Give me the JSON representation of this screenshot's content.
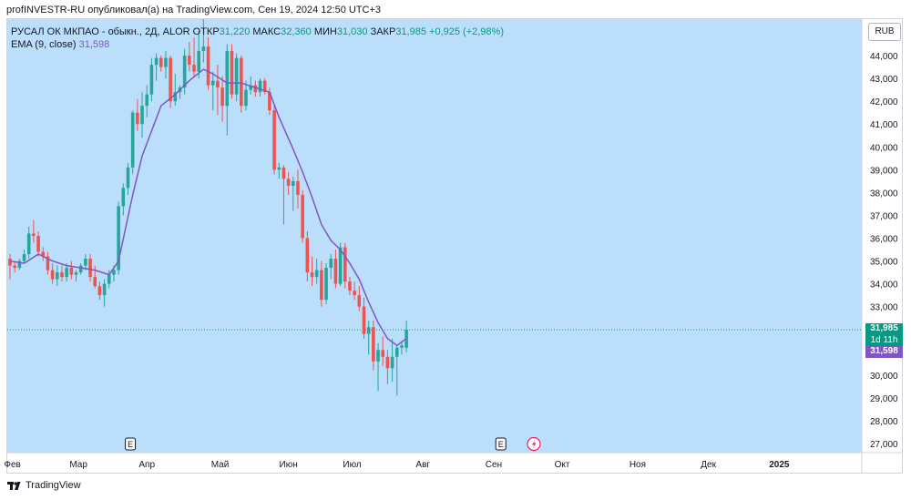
{
  "header": {
    "text": "profINVESTR-RU опубликовал(а) на TradingView.com, Сен 19, 2024 12:50 UTC+3"
  },
  "legend": {
    "symbol": "РУСАЛ ОК МКПАО - обыкн., 2Д, ALOR",
    "open_label": "ОТКР",
    "open_value": "31,220",
    "high_label": "МАКС",
    "high_value": "32,360",
    "low_label": "МИН",
    "low_value": "31,030",
    "close_label": "ЗАКР",
    "close_value": "31,985",
    "change": "+0,925 (+2,98%)",
    "ema_label": "EMA (9, close)",
    "ema_value": "31,598"
  },
  "currency": "RUB",
  "price_tag": {
    "value": "31,985",
    "countdown": "1d 11h",
    "ema": "31,598"
  },
  "event_markers": [
    "E",
    "E"
  ],
  "footer": {
    "brand": "TradingView"
  },
  "colors": {
    "background": "#bbdefb",
    "up": "#26a69a",
    "down": "#ef5350",
    "ema": "#7e57c2",
    "ema_tag": "#7e57c2",
    "last_price": "#089981"
  },
  "chart_data": {
    "type": "candlestick",
    "title": "РУСАЛ ОК МКПАО - обыкн., 2Д, ALOR",
    "ylim": [
      26.6,
      45.6
    ],
    "y_ticks": [
      27,
      28,
      29,
      30,
      31,
      32,
      33,
      34,
      35,
      36,
      37,
      38,
      39,
      40,
      41,
      42,
      43,
      44
    ],
    "y_tick_labels": [
      "27,000",
      "28,000",
      "29,000",
      "30,000",
      "31,000",
      "32,000",
      "33,000",
      "34,000",
      "35,000",
      "36,000",
      "37,000",
      "38,000",
      "39,000",
      "40,000",
      "41,000",
      "42,000",
      "43,000",
      "44,000"
    ],
    "x_labels": [
      "Фев",
      "Мар",
      "Апр",
      "Май",
      "Июн",
      "Июл",
      "Авг",
      "Сен",
      "Окт",
      "Ноя",
      "Дек",
      "2025"
    ],
    "x_label_positions": [
      0.5,
      14.5,
      29,
      44.5,
      59,
      72.5,
      87.5,
      102.5,
      117,
      133,
      148,
      163
    ],
    "candles": [
      [
        35.1,
        35.3,
        34.2,
        34.8
      ],
      [
        34.8,
        35.0,
        34.5,
        34.7
      ],
      [
        34.7,
        35.1,
        34.6,
        35.0
      ],
      [
        35.0,
        35.5,
        34.9,
        35.3
      ],
      [
        35.3,
        36.5,
        35.1,
        36.2
      ],
      [
        36.2,
        36.8,
        35.8,
        36.1
      ],
      [
        36.1,
        36.3,
        35.2,
        35.4
      ],
      [
        35.4,
        35.6,
        35.0,
        35.2
      ],
      [
        35.2,
        35.4,
        34.4,
        34.6
      ],
      [
        34.6,
        34.9,
        34.0,
        34.2
      ],
      [
        34.2,
        34.8,
        33.9,
        34.5
      ],
      [
        34.5,
        34.8,
        34.1,
        34.3
      ],
      [
        34.3,
        34.9,
        34.1,
        34.7
      ],
      [
        34.7,
        35.0,
        34.2,
        34.4
      ],
      [
        34.4,
        34.6,
        34.1,
        34.5
      ],
      [
        34.5,
        34.9,
        34.4,
        34.8
      ],
      [
        34.8,
        35.3,
        34.6,
        35.1
      ],
      [
        35.1,
        35.3,
        34.1,
        34.3
      ],
      [
        34.3,
        34.8,
        33.8,
        33.9
      ],
      [
        33.9,
        34.1,
        33.3,
        33.5
      ],
      [
        33.5,
        34.2,
        33.0,
        34.0
      ],
      [
        34.0,
        34.6,
        33.8,
        34.4
      ],
      [
        34.4,
        34.8,
        34.1,
        34.6
      ],
      [
        34.6,
        37.6,
        34.4,
        37.4
      ],
      [
        37.4,
        38.4,
        37.0,
        38.2
      ],
      [
        38.2,
        39.3,
        37.9,
        39.1
      ],
      [
        39.1,
        41.6,
        38.8,
        41.5
      ],
      [
        41.5,
        42.1,
        40.7,
        41.0
      ],
      [
        41.0,
        42.4,
        40.4,
        41.8
      ],
      [
        41.8,
        42.7,
        41.3,
        42.3
      ],
      [
        42.3,
        43.9,
        42.0,
        43.6
      ],
      [
        43.6,
        44.1,
        42.9,
        43.9
      ],
      [
        43.9,
        44.0,
        43.3,
        43.5
      ],
      [
        43.5,
        44.2,
        43.0,
        43.9
      ],
      [
        43.9,
        44.0,
        41.7,
        42.0
      ],
      [
        42.0,
        43.2,
        41.8,
        42.4
      ],
      [
        42.4,
        42.7,
        42.1,
        42.6
      ],
      [
        42.6,
        44.3,
        42.3,
        44.0
      ],
      [
        44.0,
        44.6,
        43.3,
        43.6
      ],
      [
        43.6,
        44.8,
        43.1,
        43.3
      ],
      [
        43.3,
        45.1,
        43.0,
        44.2
      ],
      [
        44.2,
        45.6,
        43.7,
        44.4
      ],
      [
        44.4,
        44.8,
        42.5,
        42.7
      ],
      [
        42.7,
        43.3,
        41.6,
        42.9
      ],
      [
        42.9,
        43.6,
        41.4,
        42.6
      ],
      [
        42.6,
        43.1,
        41.1,
        41.8
      ],
      [
        41.8,
        44.5,
        40.5,
        44.2
      ],
      [
        44.2,
        44.5,
        42.1,
        42.3
      ],
      [
        42.3,
        44.1,
        42.0,
        43.9
      ],
      [
        43.9,
        44.0,
        41.5,
        41.8
      ],
      [
        41.8,
        42.9,
        41.6,
        42.5
      ],
      [
        42.5,
        43.1,
        42.3,
        42.7
      ],
      [
        42.7,
        42.9,
        42.2,
        42.4
      ],
      [
        42.4,
        43.0,
        42.2,
        42.9
      ],
      [
        42.9,
        43.0,
        42.3,
        42.4
      ],
      [
        42.4,
        42.6,
        41.4,
        41.6
      ],
      [
        41.6,
        41.8,
        38.8,
        39.0
      ],
      [
        39.0,
        39.3,
        38.6,
        39.1
      ],
      [
        39.1,
        39.2,
        36.6,
        38.6
      ],
      [
        38.6,
        38.9,
        37.9,
        38.3
      ],
      [
        38.3,
        38.7,
        37.2,
        38.5
      ],
      [
        38.5,
        39.0,
        37.3,
        37.9
      ],
      [
        37.9,
        38.1,
        35.8,
        36.0
      ],
      [
        36.0,
        36.3,
        34.1,
        34.5
      ],
      [
        34.5,
        35.2,
        33.9,
        34.3
      ],
      [
        34.3,
        35.1,
        34.0,
        34.6
      ],
      [
        34.6,
        35.0,
        33.0,
        33.3
      ],
      [
        33.3,
        34.9,
        33.1,
        34.7
      ],
      [
        34.7,
        35.3,
        34.2,
        35.1
      ],
      [
        35.1,
        35.5,
        33.8,
        34.0
      ],
      [
        34.0,
        35.8,
        33.9,
        35.6
      ],
      [
        35.6,
        35.8,
        33.8,
        34.1
      ],
      [
        34.1,
        34.3,
        33.5,
        33.7
      ],
      [
        33.7,
        34.1,
        33.3,
        33.5
      ],
      [
        33.5,
        33.9,
        32.8,
        33.0
      ],
      [
        33.0,
        33.4,
        31.6,
        31.8
      ],
      [
        31.8,
        32.4,
        30.9,
        32.1
      ],
      [
        32.1,
        32.4,
        30.2,
        30.6
      ],
      [
        30.6,
        31.4,
        29.3,
        31.1
      ],
      [
        31.1,
        31.7,
        30.4,
        30.8
      ],
      [
        30.8,
        31.1,
        29.6,
        30.3
      ],
      [
        30.3,
        31.6,
        29.7,
        30.8
      ],
      [
        30.8,
        31.3,
        29.1,
        31.2
      ],
      [
        31.2,
        31.5,
        30.9,
        31.3
      ],
      [
        31.2,
        32.4,
        31.0,
        31.985
      ]
    ],
    "ema": {
      "name": "EMA (9, close)",
      "points": [
        [
          0,
          35.0
        ],
        [
          3,
          34.9
        ],
        [
          6,
          35.3
        ],
        [
          9,
          35.0
        ],
        [
          12,
          34.8
        ],
        [
          15,
          34.7
        ],
        [
          18,
          34.6
        ],
        [
          21,
          34.4
        ],
        [
          23,
          35.0
        ],
        [
          26,
          37.9
        ],
        [
          28,
          39.6
        ],
        [
          30,
          40.7
        ],
        [
          32,
          41.8
        ],
        [
          35,
          42.3
        ],
        [
          38,
          42.9
        ],
        [
          41,
          43.4
        ],
        [
          43,
          43.2
        ],
        [
          46,
          42.8
        ],
        [
          49,
          42.8
        ],
        [
          52,
          42.6
        ],
        [
          55,
          42.4
        ],
        [
          57,
          41.3
        ],
        [
          60,
          39.9
        ],
        [
          62,
          38.9
        ],
        [
          64,
          37.8
        ],
        [
          66,
          36.6
        ],
        [
          68,
          35.9
        ],
        [
          70,
          35.5
        ],
        [
          72,
          34.9
        ],
        [
          74,
          34.2
        ],
        [
          76,
          33.2
        ],
        [
          78,
          32.3
        ],
        [
          80,
          31.6
        ],
        [
          82,
          31.3
        ],
        [
          84,
          31.6
        ]
      ]
    },
    "last_price": 31.985
  }
}
